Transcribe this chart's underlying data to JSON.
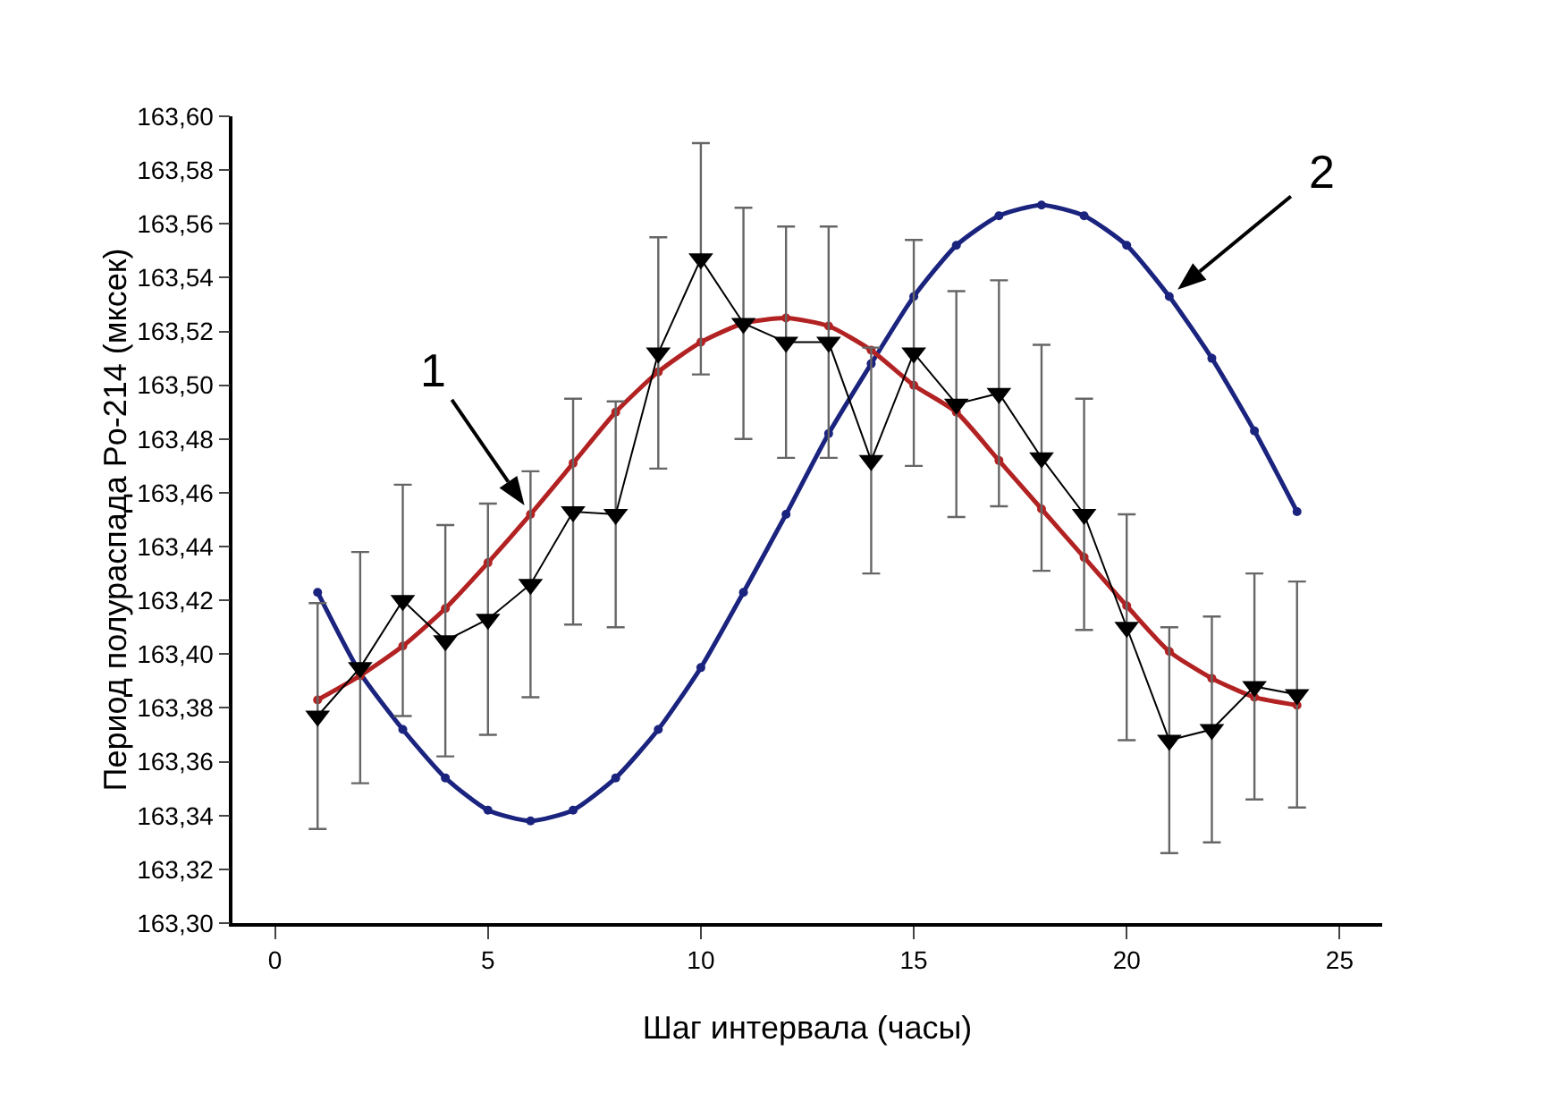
{
  "chart_data": {
    "type": "line",
    "xlabel": "Шаг интервала (часы)",
    "ylabel": "Период полураспада Po-214 (мксек)",
    "x": [
      1,
      2,
      3,
      4,
      5,
      6,
      7,
      8,
      9,
      10,
      11,
      12,
      13,
      14,
      15,
      16,
      17,
      18,
      19,
      20,
      21,
      22,
      23,
      24
    ],
    "series": [
      {
        "color": "#000000",
        "marker": "triangle",
        "values": [
          163.377,
          163.395,
          163.42,
          163.405,
          163.413,
          163.426,
          163.453,
          163.452,
          163.512,
          163.547,
          163.523,
          163.516,
          163.516,
          163.472,
          163.512,
          163.493,
          163.497,
          163.473,
          163.452,
          163.41,
          163.368,
          163.372,
          163.388,
          163.385
        ],
        "errors": [
          0.042,
          0.043,
          0.043,
          0.043,
          0.043,
          0.042,
          0.042,
          0.042,
          0.043,
          0.043,
          0.043,
          0.043,
          0.043,
          0.042,
          0.042,
          0.042,
          0.042,
          0.042,
          0.043,
          0.042,
          0.042,
          0.042,
          0.042,
          0.042
        ]
      },
      {
        "name": "1",
        "color": "#b22222",
        "marker": "circle",
        "values": [
          163.383,
          163.392,
          163.403,
          163.417,
          163.434,
          163.452,
          163.471,
          163.49,
          163.505,
          163.516,
          163.523,
          163.525,
          163.522,
          163.513,
          163.5,
          163.49,
          163.472,
          163.454,
          163.436,
          163.418,
          163.401,
          163.391,
          163.384,
          163.381
        ]
      },
      {
        "name": "2",
        "color": "#1a237e",
        "marker": "circle",
        "values": [
          163.423,
          163.393,
          163.372,
          163.354,
          163.342,
          163.338,
          163.342,
          163.354,
          163.372,
          163.395,
          163.423,
          163.452,
          163.482,
          163.508,
          163.533,
          163.552,
          163.563,
          163.567,
          163.563,
          163.552,
          163.533,
          163.51,
          163.483,
          163.453
        ]
      }
    ],
    "xlim": [
      -1,
      26
    ],
    "xticks": [
      0,
      5,
      10,
      15,
      20,
      25
    ],
    "ylim": [
      163.3,
      163.6
    ],
    "yticks": [
      {
        "value": 163.3,
        "label": "163,30"
      },
      {
        "value": 163.32,
        "label": "163,32"
      },
      {
        "value": 163.34,
        "label": "163,34"
      },
      {
        "value": 163.36,
        "label": "163,36"
      },
      {
        "value": 163.38,
        "label": "163,38"
      },
      {
        "value": 163.4,
        "label": "163,40"
      },
      {
        "value": 163.42,
        "label": "163,42"
      },
      {
        "value": 163.44,
        "label": "163,44"
      },
      {
        "value": 163.46,
        "label": "163,46"
      },
      {
        "value": 163.48,
        "label": "163,48"
      },
      {
        "value": 163.5,
        "label": "163,50"
      },
      {
        "value": 163.52,
        "label": "163,52"
      },
      {
        "value": 163.54,
        "label": "163,54"
      },
      {
        "value": 163.56,
        "label": "163,56"
      },
      {
        "value": 163.58,
        "label": "163,58"
      },
      {
        "value": 163.6,
        "label": "163,60"
      }
    ],
    "grid": false,
    "legend": false,
    "line_style": "solid"
  }
}
